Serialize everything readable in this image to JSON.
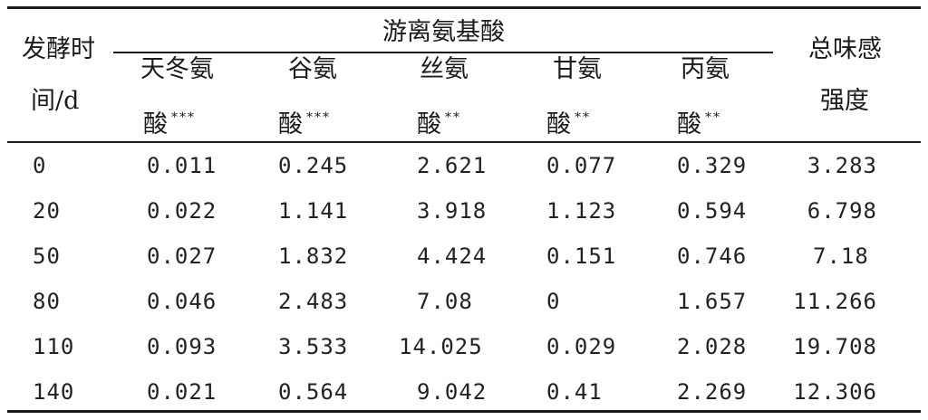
{
  "table": {
    "row_header_line1": "发酵时",
    "row_header_line2": "间/d",
    "group_header": "游离氨基酸",
    "total_header_line1": "总味感",
    "total_header_line2": "强度",
    "columns": [
      {
        "line1": "天冬氨",
        "line2": "酸",
        "stars": "***"
      },
      {
        "line1": "谷氨",
        "line2": "酸",
        "stars": "***"
      },
      {
        "line1": "丝氨",
        "line2": "酸",
        "stars": "**"
      },
      {
        "line1": "甘氨",
        "line2": "酸",
        "stars": "**"
      },
      {
        "line1": "丙氨",
        "line2": "酸",
        "stars": "**"
      }
    ],
    "rows": [
      {
        "day": "0",
        "values": [
          "0.011",
          "0.245",
          "2.621",
          "0.077",
          "0.329"
        ],
        "total": "3.283"
      },
      {
        "day": "20",
        "values": [
          "0.022",
          "1.141",
          "3.918",
          "1.123",
          "0.594"
        ],
        "total": "6.798"
      },
      {
        "day": "50",
        "values": [
          "0.027",
          "1.832",
          "4.424",
          "0.151",
          "0.746"
        ],
        "total": "7.18"
      },
      {
        "day": "80",
        "values": [
          "0.046",
          "2.483",
          "7.08",
          "0",
          "1.657"
        ],
        "total": "11.266"
      },
      {
        "day": "110",
        "values": [
          "0.093",
          "3.533",
          "14.025",
          "0.029",
          "2.028"
        ],
        "total": "19.708"
      },
      {
        "day": "140",
        "values": [
          "0.021",
          "0.564",
          "9.042",
          "0.41",
          "2.269"
        ],
        "total": "12.306"
      }
    ]
  }
}
